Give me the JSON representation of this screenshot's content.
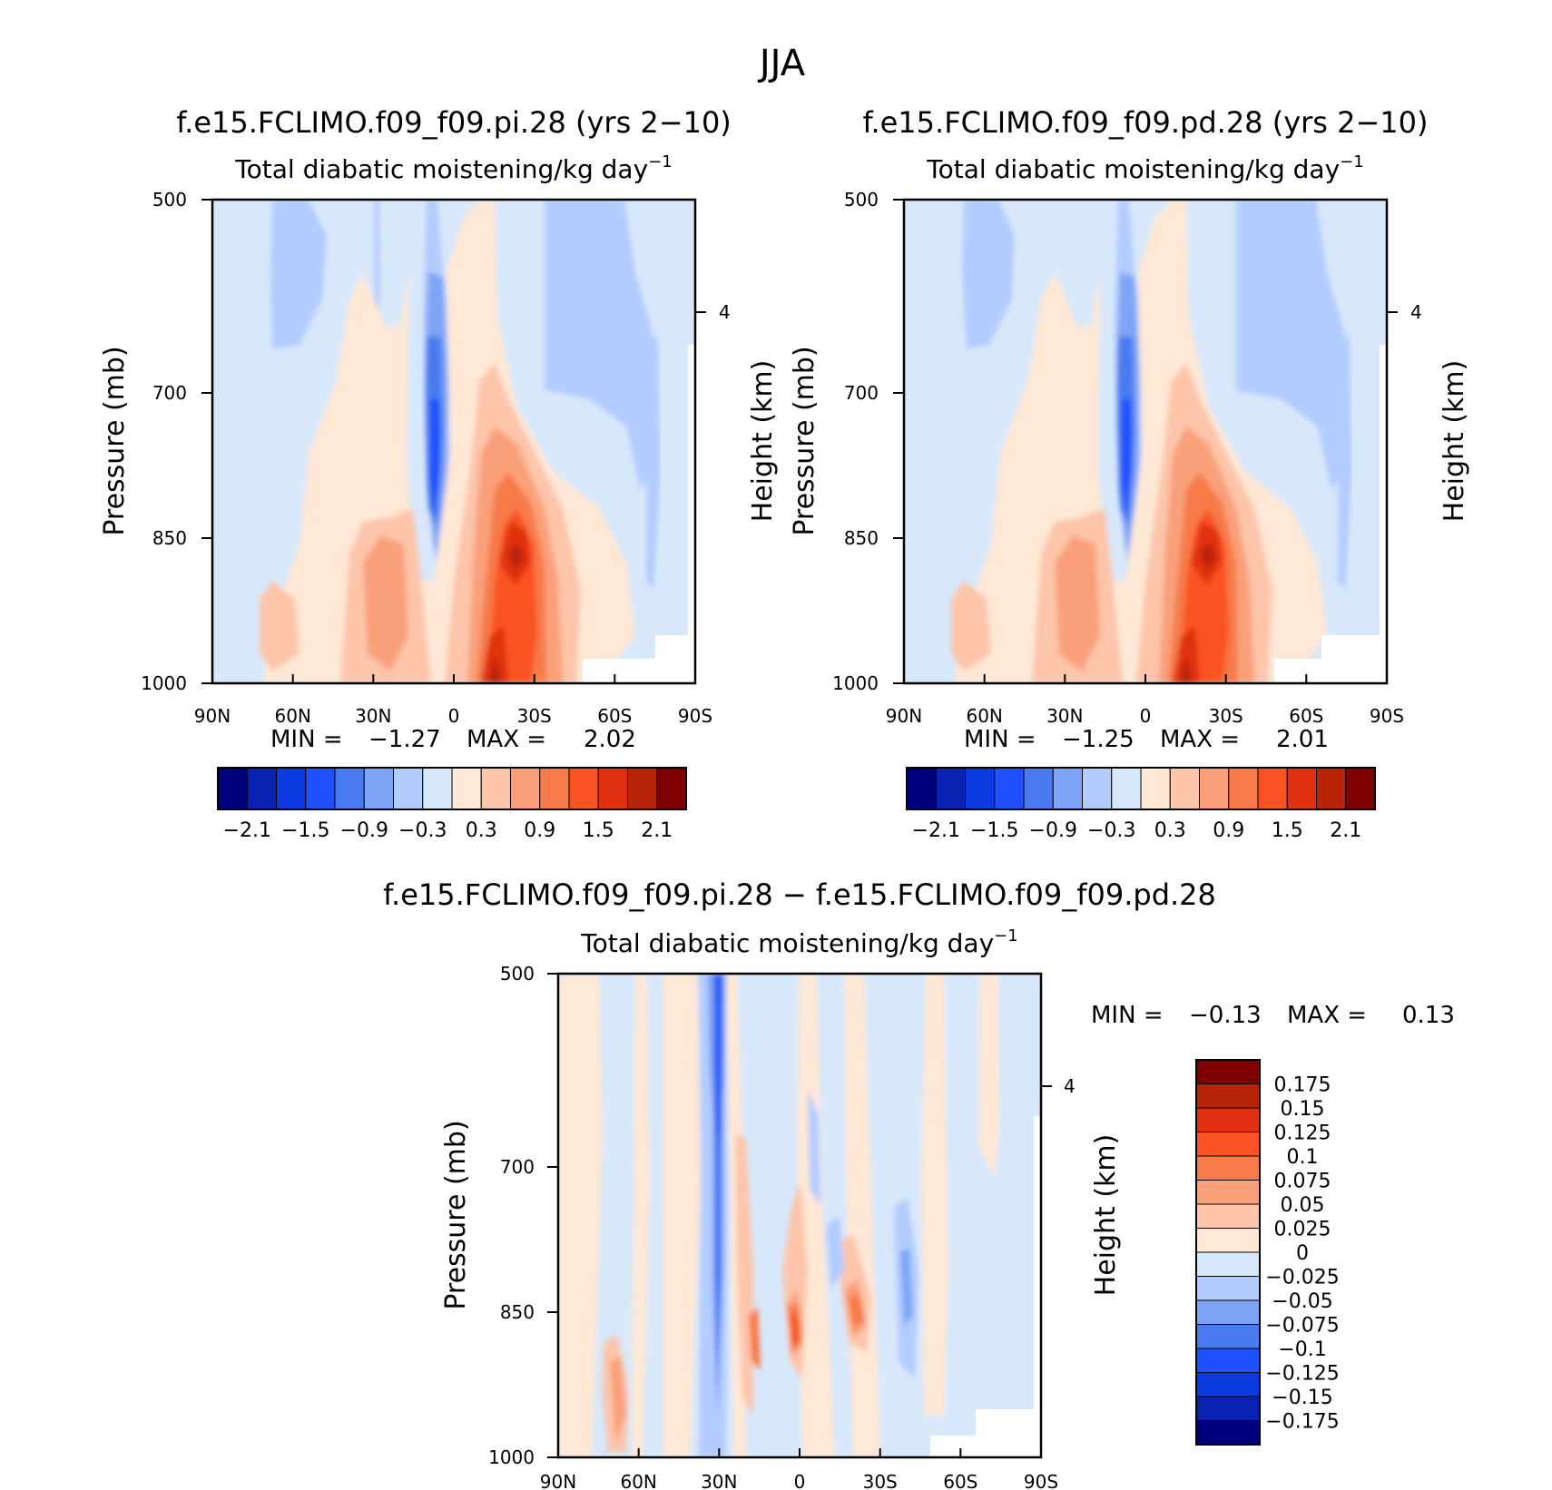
{
  "figure": {
    "title": "JJA"
  },
  "colors": {
    "main_levels": [
      "#00007f",
      "#0a22b2",
      "#0a3ae0",
      "#1e50ff",
      "#4a7af0",
      "#7ea4f5",
      "#b3ccff",
      "#d8e8fb",
      "#ffe8d6",
      "#fdc5aa",
      "#f9a07a",
      "#f77a4a",
      "#fa5224",
      "#e03010",
      "#b82408",
      "#7f0000"
    ],
    "diff_levels": [
      "#00007f",
      "#0a22b2",
      "#0a3ae0",
      "#1e50ff",
      "#4a7af0",
      "#7ea4f5",
      "#b3ccff",
      "#d8e8fb",
      "#ffe8d6",
      "#fdc5aa",
      "#f9a07a",
      "#f77a4a",
      "#fa5224",
      "#e03010",
      "#b82408",
      "#7f0000"
    ]
  },
  "panels": [
    {
      "id": "pi",
      "title": "f.e15.FCLIMO.f09_f09.pi.28 (yrs 2−10)",
      "subtitle": "Total diabatic moistening/kg day",
      "subtitle_sup": "−1",
      "ylabel": "Pressure (mb)",
      "ylabel_right": "Height (km)",
      "min_label": "MIN =",
      "min_value": "−1.27",
      "max_label": "MAX =",
      "max_value": "2.02"
    },
    {
      "id": "pd",
      "title": "f.e15.FCLIMO.f09_f09.pd.28 (yrs 2−10)",
      "subtitle": "Total diabatic moistening/kg day",
      "subtitle_sup": "−1",
      "ylabel": "Pressure (mb)",
      "ylabel_right": "Height (km)",
      "min_label": "MIN =",
      "min_value": "−1.25",
      "max_label": "MAX =",
      "max_value": "2.01"
    },
    {
      "id": "diff",
      "title": "f.e15.FCLIMO.f09_f09.pi.28 − f.e15.FCLIMO.f09_f09.pd.28",
      "subtitle": "Total diabatic moistening/kg day",
      "subtitle_sup": "−1",
      "ylabel": "Pressure (mb)",
      "ylabel_right": "Height (km)",
      "min_label": "MIN =",
      "min_value": "−0.13",
      "max_label": "MAX =",
      "max_value": "0.13"
    }
  ],
  "chart_data": [
    {
      "type": "heatmap",
      "title": "f.e15.FCLIMO.f09_f09.pi.28 (yrs 2−10)",
      "subtitle": "Total diabatic moistening/kg day⁻¹",
      "xlabel": "",
      "ylabel": "Pressure (mb)",
      "ylabel_right": "Height (km)",
      "x_ticks": [
        "90N",
        "60N",
        "30N",
        "0",
        "30S",
        "60S",
        "90S"
      ],
      "y_ticks": [
        500,
        700,
        850,
        1000
      ],
      "y_right_ticks": [
        4
      ],
      "ylim": [
        1000,
        500
      ],
      "colorbar_labels": [
        "−2.1",
        "−1.5",
        "−0.9",
        "−0.3",
        "0.3",
        "0.9",
        "1.5",
        "2.1"
      ],
      "min": -1.27,
      "max": 2.02
    },
    {
      "type": "heatmap",
      "title": "f.e15.FCLIMO.f09_f09.pd.28 (yrs 2−10)",
      "subtitle": "Total diabatic moistening/kg day⁻¹",
      "xlabel": "",
      "ylabel": "Pressure (mb)",
      "ylabel_right": "Height (km)",
      "x_ticks": [
        "90N",
        "60N",
        "30N",
        "0",
        "30S",
        "60S",
        "90S"
      ],
      "y_ticks": [
        500,
        700,
        850,
        1000
      ],
      "y_right_ticks": [
        4
      ],
      "ylim": [
        1000,
        500
      ],
      "colorbar_labels": [
        "−2.1",
        "−1.5",
        "−0.9",
        "−0.3",
        "0.3",
        "0.9",
        "1.5",
        "2.1"
      ],
      "min": -1.25,
      "max": 2.01
    },
    {
      "type": "heatmap",
      "title": "f.e15.FCLIMO.f09_f09.pi.28 − f.e15.FCLIMO.f09_f09.pd.28",
      "subtitle": "Total diabatic moistening/kg day⁻¹",
      "xlabel": "",
      "ylabel": "Pressure (mb)",
      "ylabel_right": "Height (km)",
      "x_ticks": [
        "90N",
        "60N",
        "30N",
        "0",
        "30S",
        "60S",
        "90S"
      ],
      "y_ticks": [
        500,
        700,
        850,
        1000
      ],
      "y_right_ticks": [
        4
      ],
      "ylim": [
        1000,
        500
      ],
      "colorbar_labels": [
        "0.175",
        "0.15",
        "0.125",
        "0.1",
        "0.075",
        "0.05",
        "0.025",
        "0",
        "−0.025",
        "−0.05",
        "−0.075",
        "−0.1",
        "−0.125",
        "−0.15",
        "−0.175"
      ],
      "min": -0.13,
      "max": 0.13
    }
  ]
}
